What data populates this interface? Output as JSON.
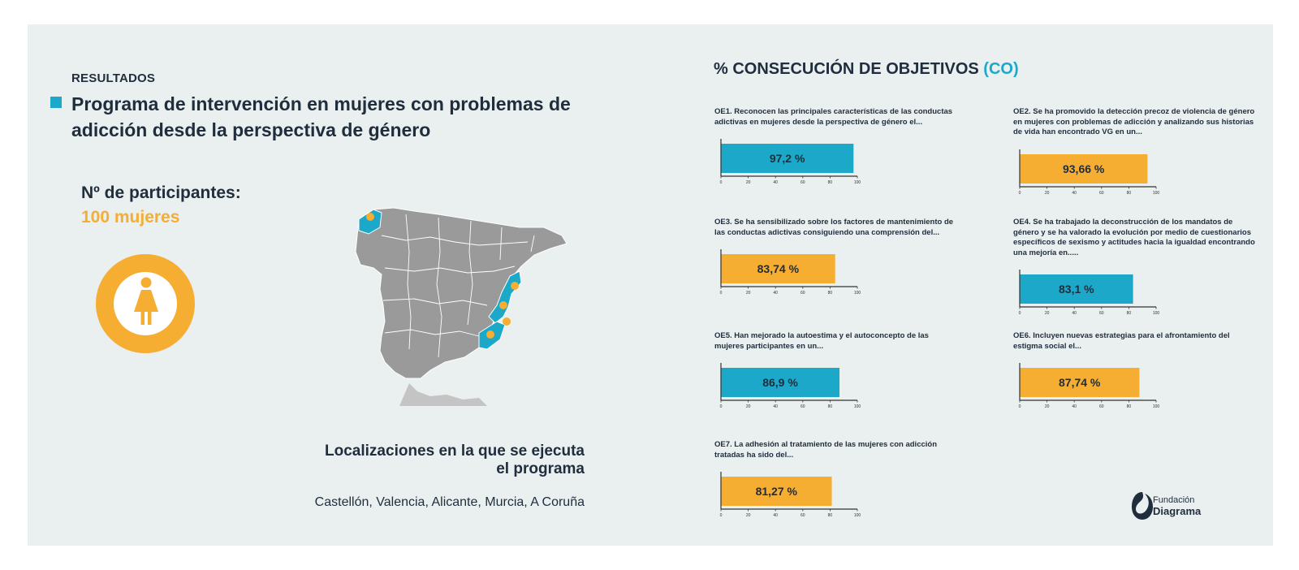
{
  "header": {
    "kicker": "RESULTADOS",
    "title": "Programa de intervención en mujeres con problemas de adicción desde la perspectiva de género"
  },
  "participants": {
    "label": "Nº de participantes:",
    "value": "100 mujeres",
    "icon": "woman-icon"
  },
  "locations": {
    "title_line1": "Localizaciones en la que se ejecuta",
    "title_line2": "el programa",
    "list": "Castellón, Valencia, Alicante, Murcia, A Coruña"
  },
  "objectives_section": {
    "title": "% CONSECUCIÓN DE OBJETIVOS",
    "title_accent": "(CO)"
  },
  "colors": {
    "teal": "#1ca9c9",
    "orange": "#f5ad32",
    "map_gray": "#9a9a9a",
    "dark_text": "#1f2d3d"
  },
  "chart_data": [
    {
      "type": "bar",
      "orientation": "horizontal",
      "text": "OE1. Reconocen las principales características de las conductas adictivas en mujeres desde la perspectiva de género el...",
      "value": 97.2,
      "label": "97,2 %",
      "color": "#1ca9c9",
      "xlim": [
        0,
        100
      ],
      "ticks": [
        "0",
        "20",
        "40",
        "60",
        "80",
        "100"
      ]
    },
    {
      "type": "bar",
      "orientation": "horizontal",
      "text": "OE2.  Se ha promovido la detección precoz de violencia de género en mujeres con problemas de adicción y analizando sus historias de vida han encontrado VG en un...",
      "value": 93.66,
      "label": "93,66 %",
      "color": "#f5ad32",
      "xlim": [
        0,
        100
      ],
      "ticks": [
        "0",
        "20",
        "40",
        "60",
        "80",
        "100"
      ]
    },
    {
      "type": "bar",
      "orientation": "horizontal",
      "text": "OE3. Se ha sensibilizado sobre los factores de mantenimiento de las conductas adictivas consiguiendo una comprensión del...",
      "value": 83.74,
      "label": "83,74 %",
      "color": "#f5ad32",
      "xlim": [
        0,
        100
      ],
      "ticks": [
        "0",
        "20",
        "40",
        "60",
        "80",
        "100"
      ]
    },
    {
      "type": "bar",
      "orientation": "horizontal",
      "text": "OE4.  Se ha trabajado la deconstrucción de los mandatos de género y se ha valorado la evolución por medio de cuestionarios específicos de sexismo y actitudes hacia la igualdad encontrando una mejoría en.....",
      "value": 83.1,
      "label": "83,1 %",
      "color": "#1ca9c9",
      "xlim": [
        0,
        100
      ],
      "ticks": [
        "0",
        "20",
        "40",
        "60",
        "80",
        "100"
      ]
    },
    {
      "type": "bar",
      "orientation": "horizontal",
      "text": "OE5.  Han mejorado la autoestima y el autoconcepto de las mujeres participantes en un...",
      "value": 86.9,
      "label": "86,9 %",
      "color": "#1ca9c9",
      "xlim": [
        0,
        100
      ],
      "ticks": [
        "0",
        "20",
        "40",
        "60",
        "80",
        "100"
      ]
    },
    {
      "type": "bar",
      "orientation": "horizontal",
      "text": "OE6.  Incluyen nuevas estrategias para el afrontamiento del estigma social el...",
      "value": 87.74,
      "label": "87,74 %",
      "color": "#f5ad32",
      "xlim": [
        0,
        100
      ],
      "ticks": [
        "0",
        "20",
        "40",
        "60",
        "80",
        "100"
      ]
    },
    {
      "type": "bar",
      "orientation": "horizontal",
      "text": "OE7.  La adhesión al tratamiento de las mujeres con adicción tratadas ha sido del...",
      "value": 81.27,
      "label": "81,27 %",
      "color": "#f5ad32",
      "xlim": [
        0,
        100
      ],
      "ticks": [
        "0",
        "20",
        "40",
        "60",
        "80",
        "100"
      ]
    }
  ],
  "logo": {
    "line1": "Fundación",
    "line2": "Diagrama",
    "icon": "diagrama-logo-icon"
  }
}
